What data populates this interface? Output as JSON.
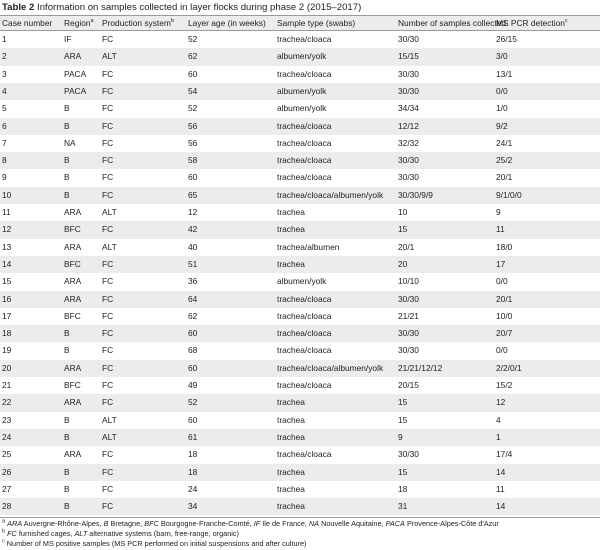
{
  "caption": {
    "label": "Table 2",
    "text": "Information on samples collected in layer flocks during phase 2 (2015–2017)"
  },
  "columns": {
    "case": "Case number",
    "region": "Region",
    "region_sup": "a",
    "system": "Production system",
    "system_sup": "b",
    "layer_age": "Layer age (in weeks)",
    "sample_type": "Sample type (swabs)",
    "num_samples": "Number of samples collected",
    "pcr": "MS PCR detection",
    "pcr_sup": "c"
  },
  "rows": [
    [
      "1",
      "IF",
      "FC",
      "52",
      "trachea/cloaca",
      "30/30",
      "26/15"
    ],
    [
      "2",
      "ARA",
      "ALT",
      "62",
      "albumen/yolk",
      "15/15",
      "3/0"
    ],
    [
      "3",
      "PACA",
      "FC",
      "60",
      "trachea/cloaca",
      "30/30",
      "13/1"
    ],
    [
      "4",
      "PACA",
      "FC",
      "54",
      "albumen/yolk",
      "30/30",
      "0/0"
    ],
    [
      "5",
      "B",
      "FC",
      "52",
      "albumen/yolk",
      "34/34",
      "1/0"
    ],
    [
      "6",
      "B",
      "FC",
      "56",
      "trachea/cloaca",
      "12/12",
      "9/2"
    ],
    [
      "7",
      "NA",
      "FC",
      "56",
      "trachea/cloaca",
      "32/32",
      "24/1"
    ],
    [
      "8",
      "B",
      "FC",
      "58",
      "trachea/cloaca",
      "30/30",
      "25/2"
    ],
    [
      "9",
      "B",
      "FC",
      "60",
      "trachea/cloaca",
      "30/30",
      "20/1"
    ],
    [
      "10",
      "B",
      "FC",
      "65",
      "trachea/cloaca/albumen/yolk",
      "30/30/9/9",
      "9/1/0/0"
    ],
    [
      "11",
      "ARA",
      "ALT",
      "12",
      "trachea",
      "10",
      "9"
    ],
    [
      "12",
      "BFC",
      "FC",
      "42",
      "trachea",
      "15",
      "11"
    ],
    [
      "13",
      "ARA",
      "ALT",
      "40",
      "trachea/albumen",
      "20/1",
      "18/0"
    ],
    [
      "14",
      "BFC",
      "FC",
      "51",
      "trachea",
      "20",
      "17"
    ],
    [
      "15",
      "ARA",
      "FC",
      "36",
      "albumen/yolk",
      "10/10",
      "0/0"
    ],
    [
      "16",
      "ARA",
      "FC",
      "64",
      "trachea/cloaca",
      "30/30",
      "20/1"
    ],
    [
      "17",
      "BFC",
      "FC",
      "62",
      "trachea/cloaca",
      "21/21",
      "10/0"
    ],
    [
      "18",
      "B",
      "FC",
      "60",
      "trachea/cloaca",
      "30/30",
      "20/7"
    ],
    [
      "19",
      "B",
      "FC",
      "68",
      "trachea/cloaca",
      "30/30",
      "0/0"
    ],
    [
      "20",
      "ARA",
      "FC",
      "60",
      "trachea/cloaca/albumen/yolk",
      "21/21/12/12",
      "2/2/0/1"
    ],
    [
      "21",
      "BFC",
      "FC",
      "49",
      "trachea/cloaca",
      "20/15",
      "15/2"
    ],
    [
      "22",
      "ARA",
      "FC",
      "52",
      "trachea",
      "15",
      "12"
    ],
    [
      "23",
      "B",
      "ALT",
      "60",
      "trachea",
      "15",
      "4"
    ],
    [
      "24",
      "B",
      "ALT",
      "61",
      "trachea",
      "9",
      "1"
    ],
    [
      "25",
      "ARA",
      "FC",
      "18",
      "trachea/cloaca",
      "30/30",
      "17/4"
    ],
    [
      "26",
      "B",
      "FC",
      "18",
      "trachea",
      "15",
      "14"
    ],
    [
      "27",
      "B",
      "FC",
      "24",
      "trachea",
      "18",
      "11"
    ],
    [
      "28",
      "B",
      "FC",
      "34",
      "trachea",
      "31",
      "14"
    ]
  ],
  "footnotes": {
    "a": {
      "mark": "a",
      "parts": [
        {
          "t": "ARA",
          "i": true
        },
        {
          "t": " Auvergne-Rhône-Alpes, ",
          "i": false
        },
        {
          "t": "B",
          "i": true
        },
        {
          "t": " Bretagne, ",
          "i": false
        },
        {
          "t": "BFC",
          "i": true
        },
        {
          "t": " Bourgogne-Franche-Comté, ",
          "i": false
        },
        {
          "t": "IF",
          "i": true
        },
        {
          "t": " Ile de France, ",
          "i": false
        },
        {
          "t": "NA",
          "i": true
        },
        {
          "t": " Nouvelle Aquitaine, ",
          "i": false
        },
        {
          "t": "PACA",
          "i": true
        },
        {
          "t": " Provence-Alpes-Côte d'Azur",
          "i": false
        }
      ]
    },
    "b": {
      "mark": "b",
      "parts": [
        {
          "t": "FC",
          "i": true
        },
        {
          "t": " furnished cages, ",
          "i": false
        },
        {
          "t": "ALT",
          "i": true
        },
        {
          "t": " alternative systems (barn, free-range, organic)",
          "i": false
        }
      ]
    },
    "c": {
      "mark": "c",
      "parts": [
        {
          "t": "Number of MS positive samples (MS PCR performed on initial suspensions and after culture)",
          "i": false
        }
      ]
    }
  }
}
